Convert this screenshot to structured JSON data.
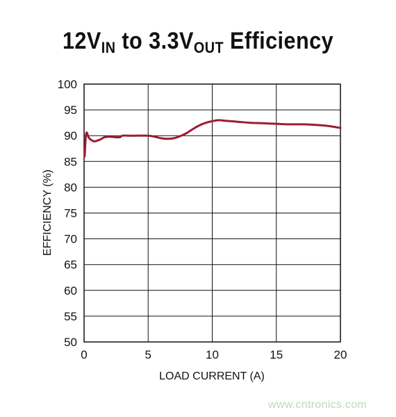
{
  "title": {
    "prefix": "12V",
    "in_sub": "IN",
    "middle": " to 3.3V",
    "out_sub": "OUT",
    "suffix": " Efficiency"
  },
  "watermark": "www.cntronics.com",
  "colors": {
    "series": "#9e1b32",
    "grid": "#111111",
    "watermark": "#b8dcb8"
  },
  "chart_data": {
    "type": "line",
    "xlabel": "LOAD CURRENT (A)",
    "ylabel": "EFFICIENCY (%)",
    "xlim": [
      0,
      20
    ],
    "ylim": [
      50,
      100
    ],
    "xticks": [
      0,
      5,
      10,
      15,
      20
    ],
    "yticks": [
      50,
      55,
      60,
      65,
      70,
      75,
      80,
      85,
      90,
      95,
      100
    ],
    "grid": true,
    "series": [
      {
        "x": [
          0.05,
          0.1,
          0.15,
          0.2,
          0.25,
          0.3,
          0.4,
          0.6,
          0.8,
          1.0,
          1.3,
          1.6,
          2.0,
          2.4,
          2.8,
          3.0,
          3.5,
          4.0,
          5.0,
          5.5,
          6.0,
          6.5,
          7.0,
          7.5,
          8.0,
          8.5,
          9.0,
          9.5,
          10.0,
          10.5,
          11.0,
          12.0,
          13.0,
          14.0,
          15.0,
          16.0,
          17.0,
          18.0,
          19.0,
          20.0
        ],
        "y": [
          86.0,
          88.5,
          90.2,
          90.6,
          90.4,
          90.0,
          89.5,
          89.1,
          88.9,
          89.0,
          89.3,
          89.7,
          89.8,
          89.7,
          89.7,
          90.0,
          90.0,
          90.0,
          90.0,
          89.8,
          89.5,
          89.4,
          89.5,
          89.9,
          90.5,
          91.3,
          92.0,
          92.5,
          92.8,
          93.0,
          92.9,
          92.7,
          92.5,
          92.4,
          92.3,
          92.2,
          92.2,
          92.1,
          91.9,
          91.5
        ]
      }
    ]
  }
}
